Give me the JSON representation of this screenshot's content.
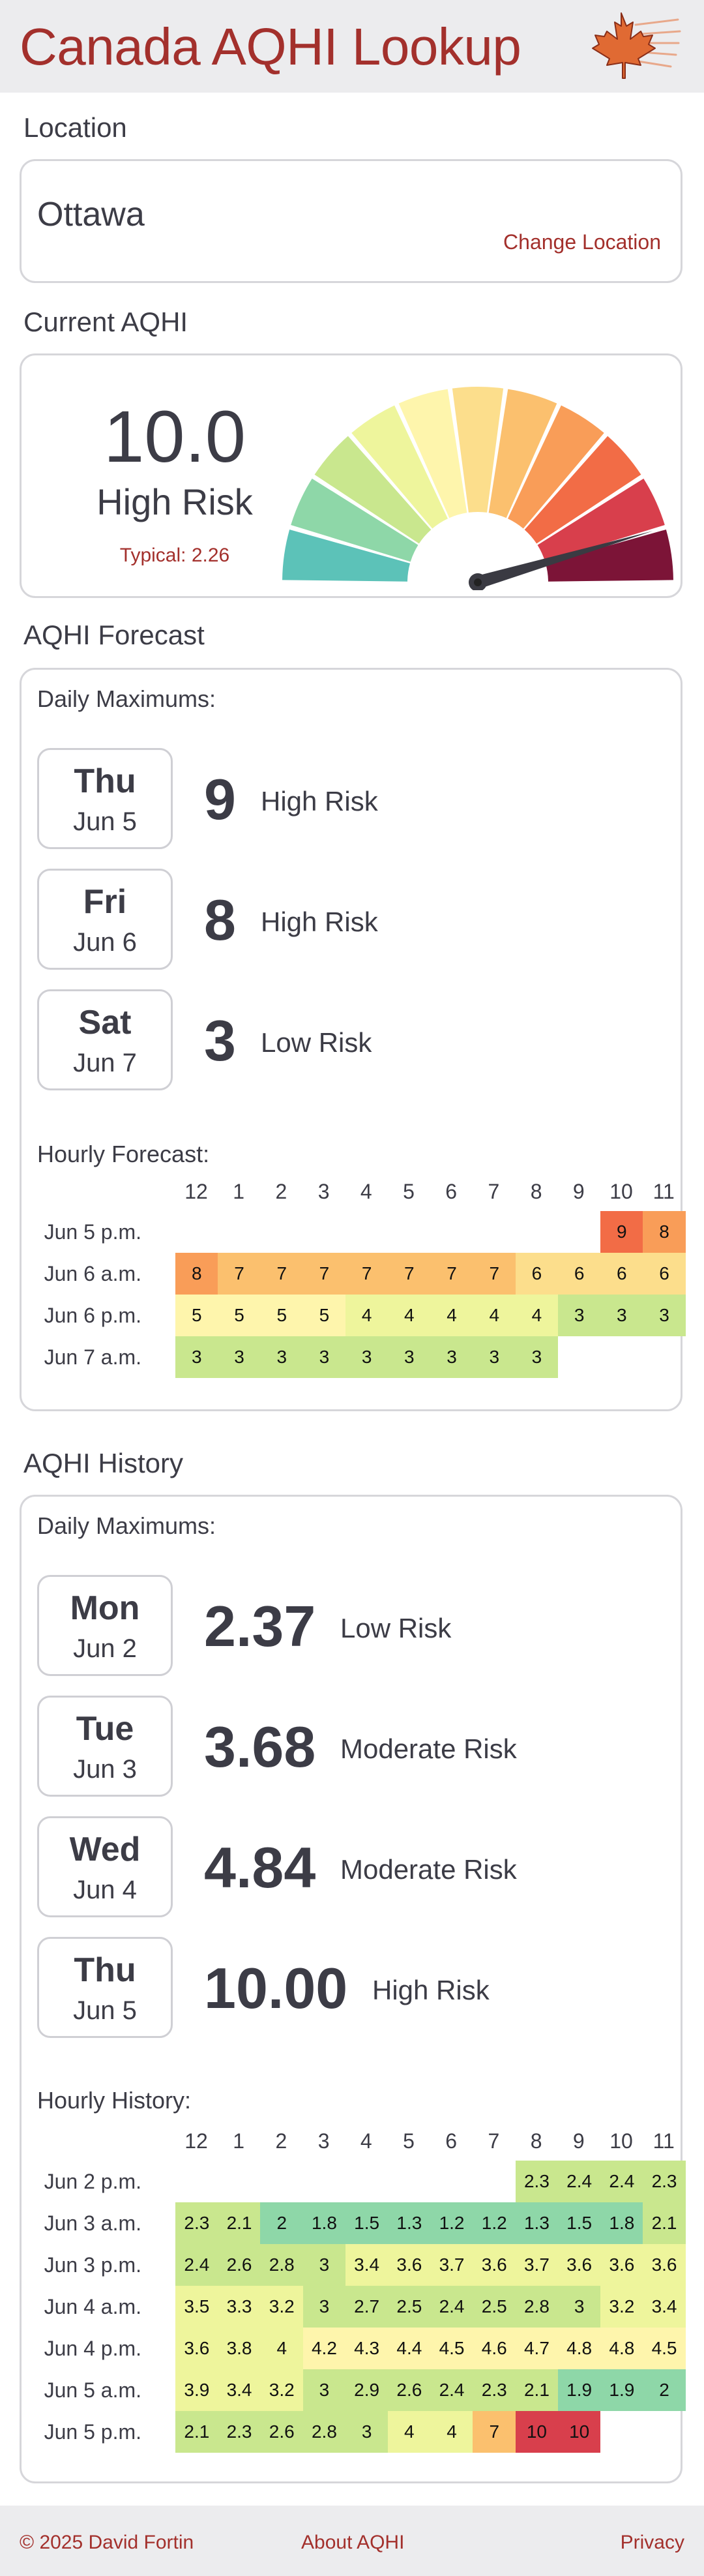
{
  "header": {
    "title": "Canada AQHI Lookup",
    "logo_icon": "maple-leaf-icon"
  },
  "location": {
    "section_title": "Location",
    "name": "Ottawa",
    "change_label": "Change Location"
  },
  "current": {
    "section_title": "Current AQHI",
    "value": "10.0",
    "risk": "High Risk",
    "typical": "Typical: 2.26",
    "gauge_value": 10.0,
    "gauge_max": 11
  },
  "scale_colors": [
    "#5cc2b8",
    "#8ed7a8",
    "#c9e78e",
    "#eef59c",
    "#fef5ac",
    "#fcde8c",
    "#fbc06e",
    "#f99d58",
    "#f26c46",
    "#d83f4c",
    "#7c1437"
  ],
  "forecast": {
    "section_title": "AQHI Forecast",
    "daily_label": "Daily Maximums:",
    "daily": [
      {
        "day": "Thu",
        "date": "Jun 5",
        "value": "9",
        "risk": "High Risk"
      },
      {
        "day": "Fri",
        "date": "Jun 6",
        "value": "8",
        "risk": "High Risk"
      },
      {
        "day": "Sat",
        "date": "Jun 7",
        "value": "3",
        "risk": "Low Risk"
      }
    ],
    "hourly_label": "Hourly Forecast:",
    "hours": [
      "12",
      "1",
      "2",
      "3",
      "4",
      "5",
      "6",
      "7",
      "8",
      "9",
      "10",
      "11"
    ],
    "rows": [
      {
        "label": "Jun 5 p.m.",
        "cells": [
          null,
          null,
          null,
          null,
          null,
          null,
          null,
          null,
          null,
          null,
          "9",
          "8"
        ]
      },
      {
        "label": "Jun 6 a.m.",
        "cells": [
          "8",
          "7",
          "7",
          "7",
          "7",
          "7",
          "7",
          "7",
          "6",
          "6",
          "6",
          "6"
        ]
      },
      {
        "label": "Jun 6 p.m.",
        "cells": [
          "5",
          "5",
          "5",
          "5",
          "4",
          "4",
          "4",
          "4",
          "4",
          "3",
          "3",
          "3"
        ]
      },
      {
        "label": "Jun 7 a.m.",
        "cells": [
          "3",
          "3",
          "3",
          "3",
          "3",
          "3",
          "3",
          "3",
          "3",
          null,
          null,
          null
        ]
      }
    ]
  },
  "history": {
    "section_title": "AQHI History",
    "daily_label": "Daily Maximums:",
    "daily": [
      {
        "day": "Mon",
        "date": "Jun 2",
        "value": "2.37",
        "risk": "Low Risk"
      },
      {
        "day": "Tue",
        "date": "Jun 3",
        "value": "3.68",
        "risk": "Moderate Risk"
      },
      {
        "day": "Wed",
        "date": "Jun 4",
        "value": "4.84",
        "risk": "Moderate Risk"
      },
      {
        "day": "Thu",
        "date": "Jun 5",
        "value": "10.00",
        "risk": "High Risk"
      }
    ],
    "hourly_label": "Hourly History:",
    "hours": [
      "12",
      "1",
      "2",
      "3",
      "4",
      "5",
      "6",
      "7",
      "8",
      "9",
      "10",
      "11"
    ],
    "rows": [
      {
        "label": "Jun 2 p.m.",
        "cells": [
          null,
          null,
          null,
          null,
          null,
          null,
          null,
          null,
          "2.3",
          "2.4",
          "2.4",
          "2.3"
        ]
      },
      {
        "label": "Jun 3 a.m.",
        "cells": [
          "2.3",
          "2.1",
          "2",
          "1.8",
          "1.5",
          "1.3",
          "1.2",
          "1.2",
          "1.3",
          "1.5",
          "1.8",
          "2.1"
        ]
      },
      {
        "label": "Jun 3 p.m.",
        "cells": [
          "2.4",
          "2.6",
          "2.8",
          "3",
          "3.4",
          "3.6",
          "3.7",
          "3.6",
          "3.7",
          "3.6",
          "3.6",
          "3.6"
        ]
      },
      {
        "label": "Jun 4 a.m.",
        "cells": [
          "3.5",
          "3.3",
          "3.2",
          "3",
          "2.7",
          "2.5",
          "2.4",
          "2.5",
          "2.8",
          "3",
          "3.2",
          "3.4"
        ]
      },
      {
        "label": "Jun 4 p.m.",
        "cells": [
          "3.6",
          "3.8",
          "4",
          "4.2",
          "4.3",
          "4.4",
          "4.5",
          "4.6",
          "4.7",
          "4.8",
          "4.8",
          "4.5"
        ]
      },
      {
        "label": "Jun 5 a.m.",
        "cells": [
          "3.9",
          "3.4",
          "3.2",
          "3",
          "2.9",
          "2.6",
          "2.4",
          "2.3",
          "2.1",
          "1.9",
          "1.9",
          "2"
        ]
      },
      {
        "label": "Jun 5 p.m.",
        "cells": [
          "2.1",
          "2.3",
          "2.6",
          "2.8",
          "3",
          "4",
          "4",
          "7",
          "10",
          "10",
          null,
          null
        ]
      }
    ]
  },
  "footer": {
    "copyright": "© 2025 David Fortin",
    "about": "About AQHI",
    "privacy": "Privacy"
  }
}
